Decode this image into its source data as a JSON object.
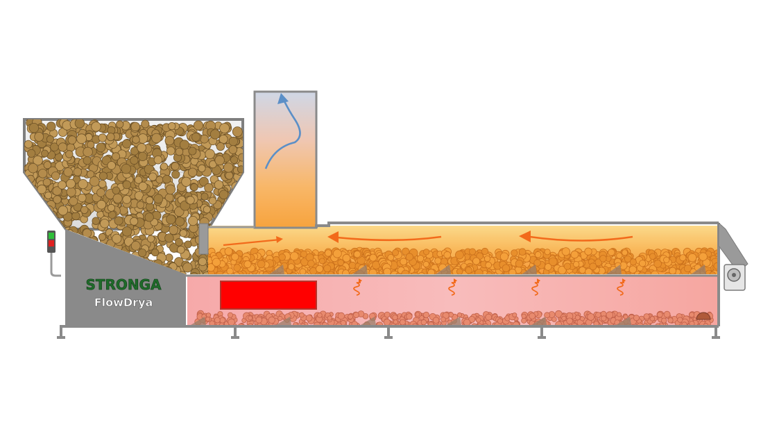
{
  "brand": {
    "name": "STRONGA",
    "product": "FlowDrya"
  },
  "colors": {
    "frame": "#7f7f7f",
    "frame_light": "#a9a9a9",
    "hopper_glass": "#ececec",
    "pellet": "#b0894a",
    "pellet_dark": "#7a5a2a",
    "upper_chamber_hot": "#f7a23b",
    "upper_chamber_light": "#fbd98a",
    "lower_chamber": "#f7b0b0",
    "heater": "#ff0000",
    "hot_arrow": "#f26a1b",
    "exhaust_arrow": "#5b8fc7",
    "brand_green": "#1f6b2a",
    "brand_white": "#ffffff"
  },
  "icons": {
    "exhaust": "exhaust-arrow-icon",
    "airflow": "airflow-arrow-icon",
    "heat": "heat-wave-icon",
    "fan": "fan-icon",
    "status_light": "status-light-icon"
  }
}
